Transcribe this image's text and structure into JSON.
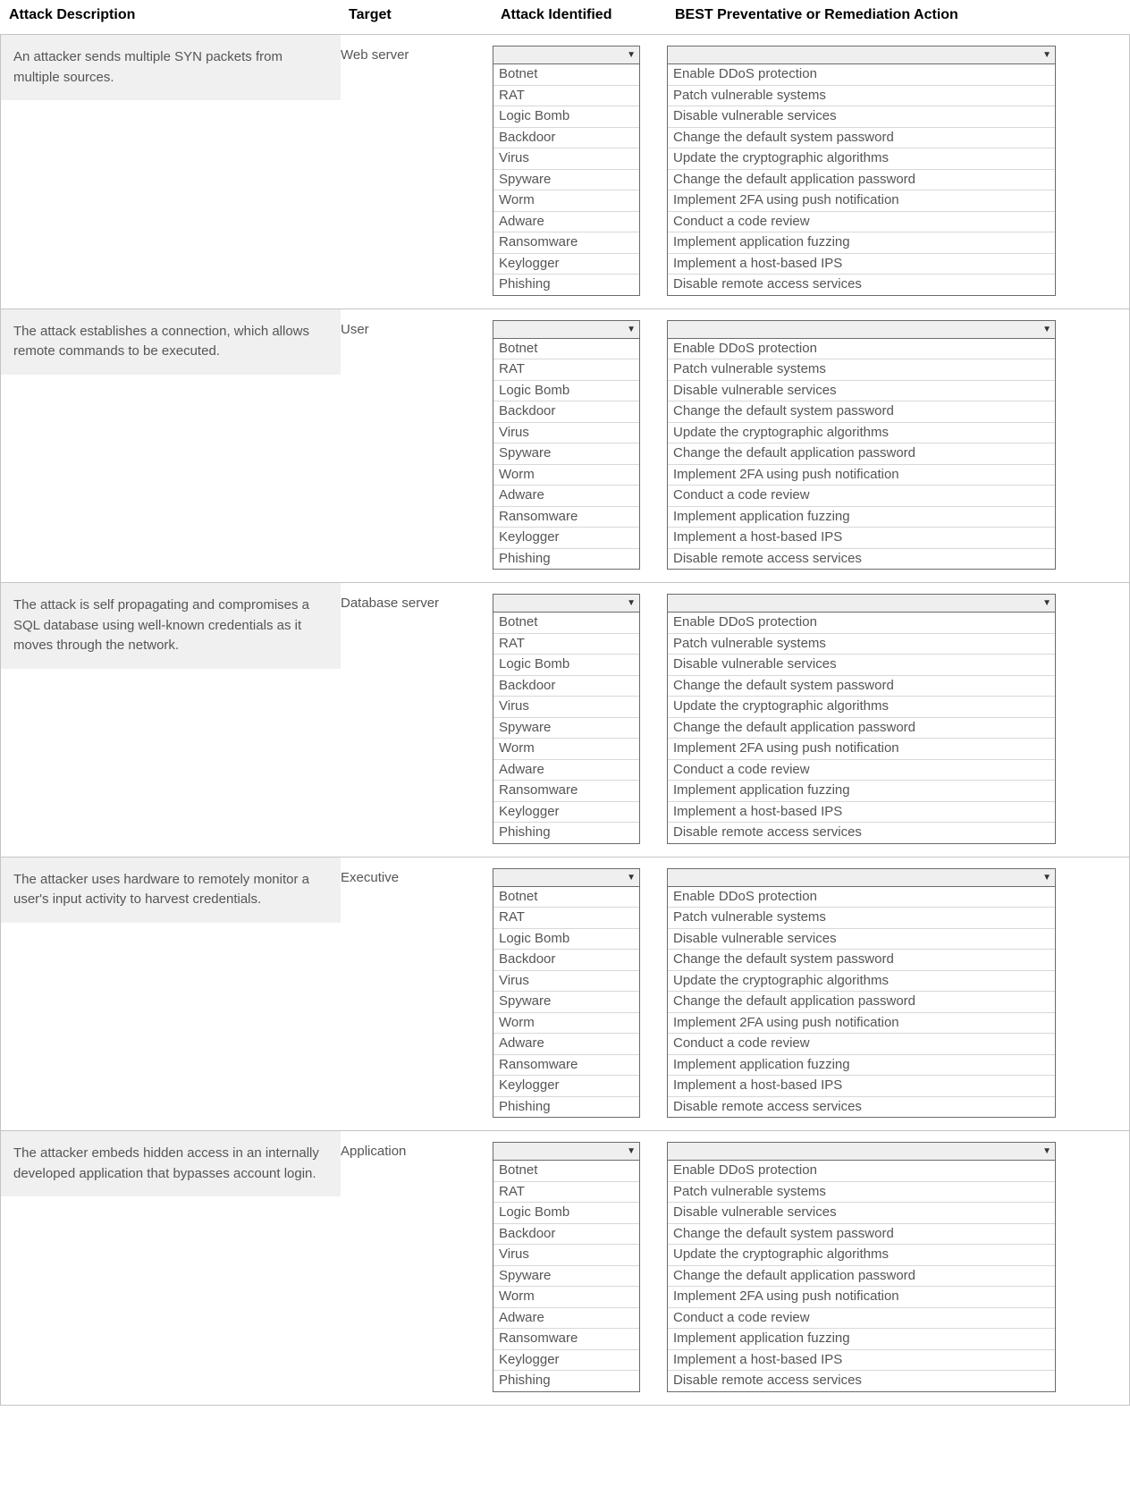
{
  "headers": {
    "description": "Attack Description",
    "target": "Target",
    "attack_identified": "Attack Identified",
    "action": "BEST Preventative or Remediation Action"
  },
  "attack_options": [
    "Botnet",
    "RAT",
    "Logic Bomb",
    "Backdoor",
    "Virus",
    "Spyware",
    "Worm",
    "Adware",
    "Ransomware",
    "Keylogger",
    "Phishing"
  ],
  "action_options": [
    "Enable DDoS protection",
    "Patch vulnerable systems",
    "Disable vulnerable services",
    "Change the default system password",
    "Update the cryptographic algorithms",
    "Change the default application password",
    "Implement 2FA using push notification",
    "Conduct a code review",
    "Implement application fuzzing",
    "Implement a host-based IPS",
    "Disable remote access services"
  ],
  "scenarios": [
    {
      "description": "An attacker sends multiple SYN packets from multiple sources.",
      "target": "Web server"
    },
    {
      "description": "The attack establishes a connection, which allows remote commands to be executed.",
      "target": "User"
    },
    {
      "description": "The attack is self propagating and compromises a SQL database using well-known credentials as it moves through the network.",
      "target": "Database server"
    },
    {
      "description": "The attacker uses hardware to remotely monitor a user's input activity to harvest credentials.",
      "target": "Executive"
    },
    {
      "description": "The attacker embeds hidden access in an internally developed application that bypasses account login.",
      "target": "Application"
    }
  ]
}
